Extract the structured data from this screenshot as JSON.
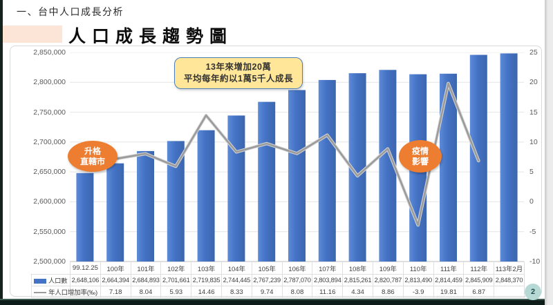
{
  "page": {
    "header": "一、台中人口成長分析",
    "title": "人口成長趨勢圖",
    "page_number": "2"
  },
  "annotations": {
    "growth_callout": {
      "lines": [
        "13年來增加20萬",
        "平均每年約以1萬5千人成長"
      ],
      "fill": "#ffe699",
      "border": "#4a7ebb"
    },
    "upgrade_callout": {
      "lines": [
        "升格",
        "直轄市"
      ],
      "fill": "#ed7d31"
    },
    "covid_callout": {
      "lines": [
        "疫情",
        "影響"
      ],
      "fill": "#ed7d31"
    }
  },
  "chart_data": {
    "type": "bar+line",
    "title": "人口成長趨勢圖",
    "categories": [
      "99.12.25",
      "100年",
      "101年",
      "102年",
      "103年",
      "104年",
      "105年",
      "106年",
      "107年",
      "108年",
      "109年",
      "110年",
      "111年",
      "112年",
      "113年2月"
    ],
    "series": [
      {
        "name": "人口數",
        "type": "bar",
        "axis": "left",
        "color": "#4472c4",
        "values": [
          2648106,
          2664394,
          2684893,
          2701661,
          2719835,
          2744445,
          2767239,
          2787070,
          2803894,
          2815261,
          2820787,
          2813490,
          2814459,
          2845909,
          2848370
        ]
      },
      {
        "name": "年人口增加率(‰)",
        "type": "line",
        "axis": "right",
        "color": "#9b9b9b",
        "values": [
          null,
          7.18,
          8.04,
          5.93,
          14.46,
          8.33,
          9.74,
          8.08,
          11.16,
          4.34,
          8.86,
          -3.9,
          19.81,
          6.87,
          null
        ]
      }
    ],
    "left_axis": {
      "min": 2500000,
      "max": 2850000,
      "step": 50000
    },
    "right_axis": {
      "min": -10,
      "max": 25,
      "step": 5
    },
    "grid": true,
    "legend_position": "data-table-left",
    "data_table": true
  }
}
